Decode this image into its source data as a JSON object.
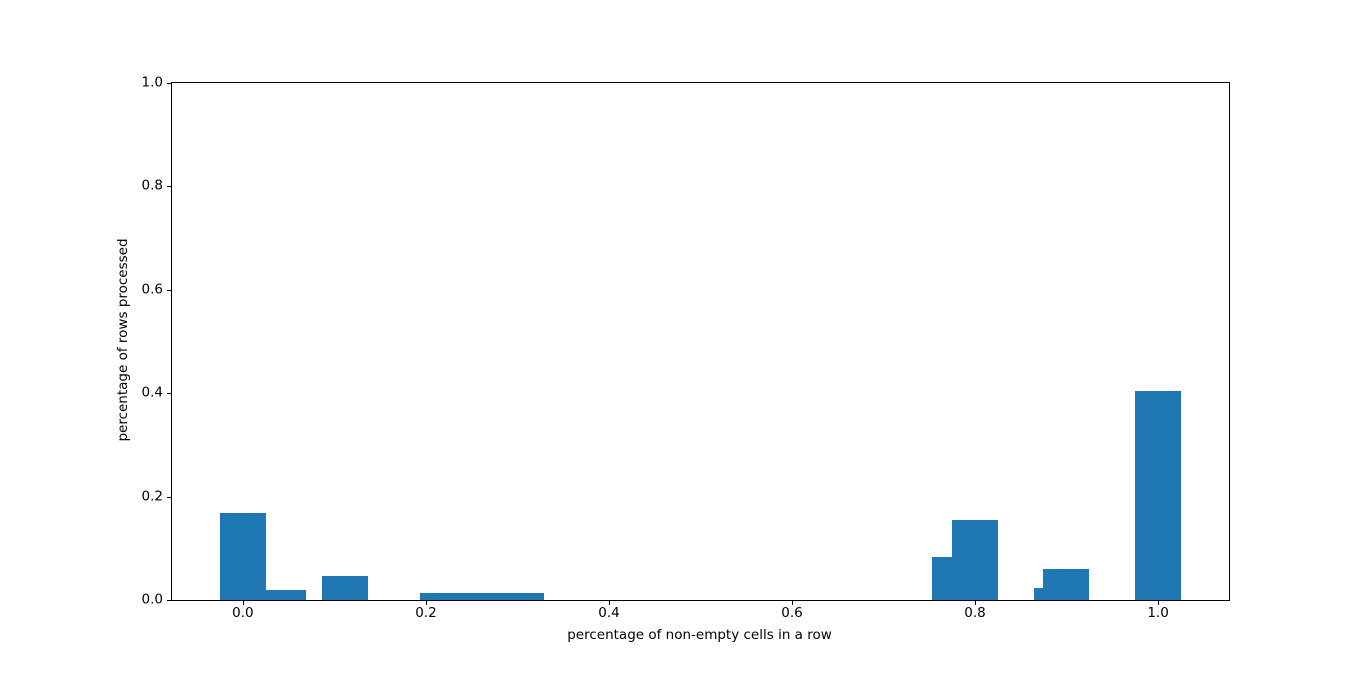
{
  "chart_data": {
    "type": "bar",
    "subtype": "histogram",
    "title": "",
    "xlabel": "percentage of non-empty cells in a row",
    "ylabel": "percentage of rows processed",
    "xlim": [
      -0.0775,
      1.0775
    ],
    "ylim": [
      0,
      1
    ],
    "grid": false,
    "legend": null,
    "bar_color": "#1f77b4",
    "spine_color": "#000000",
    "background_color": "#ffffff",
    "x_ticks": [
      {
        "value": 0.0,
        "label": "0.0"
      },
      {
        "value": 0.2,
        "label": "0.2"
      },
      {
        "value": 0.4,
        "label": "0.4"
      },
      {
        "value": 0.6,
        "label": "0.6"
      },
      {
        "value": 0.8,
        "label": "0.8"
      },
      {
        "value": 1.0,
        "label": "1.0"
      }
    ],
    "y_ticks": [
      {
        "value": 0.0,
        "label": "0.0"
      },
      {
        "value": 0.2,
        "label": "0.2"
      },
      {
        "value": 0.4,
        "label": "0.4"
      },
      {
        "value": 0.6,
        "label": "0.6"
      },
      {
        "value": 0.8,
        "label": "0.8"
      },
      {
        "value": 1.0,
        "label": "1.0"
      }
    ],
    "bars": [
      {
        "x_left": -0.025,
        "x_right": 0.025,
        "height": 0.168
      },
      {
        "x_left": 0.025,
        "x_right": 0.069,
        "height": 0.02
      },
      {
        "x_left": 0.086,
        "x_right": 0.137,
        "height": 0.047
      },
      {
        "x_left": 0.193,
        "x_right": 0.329,
        "height": 0.014
      },
      {
        "x_left": 0.753,
        "x_right": 0.775,
        "height": 0.083
      },
      {
        "x_left": 0.775,
        "x_right": 0.825,
        "height": 0.155
      },
      {
        "x_left": 0.864,
        "x_right": 0.874,
        "height": 0.024
      },
      {
        "x_left": 0.874,
        "x_right": 0.925,
        "height": 0.06
      },
      {
        "x_left": 0.975,
        "x_right": 1.025,
        "height": 0.405
      }
    ]
  }
}
